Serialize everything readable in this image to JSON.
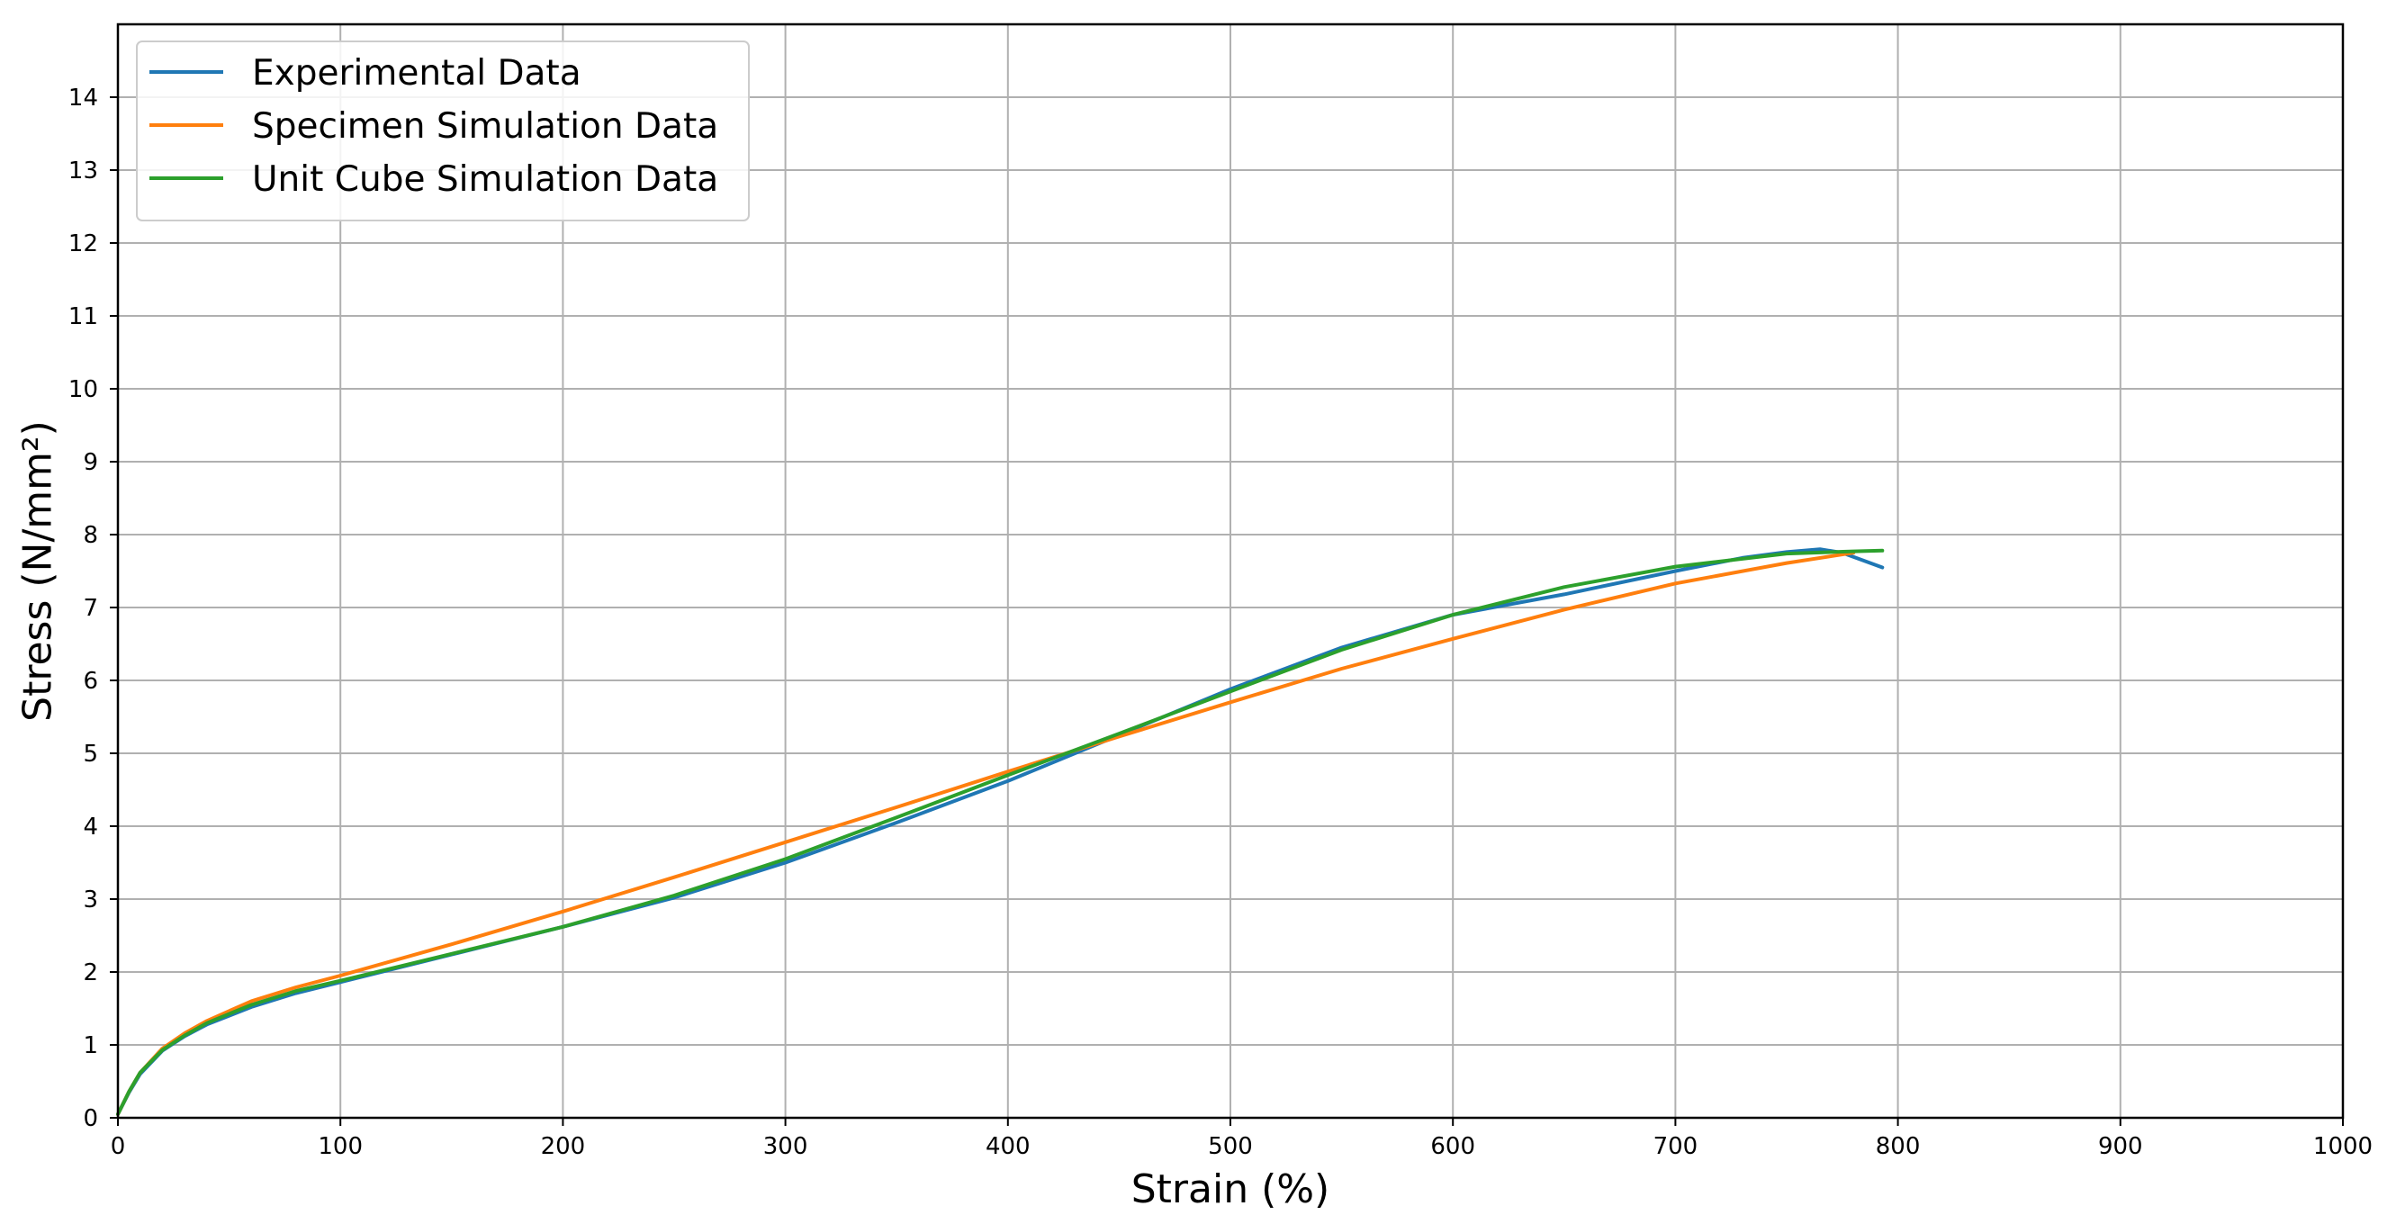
{
  "chart_data": {
    "type": "line",
    "title": "",
    "xlabel": "Strain (%)",
    "ylabel": "Stress (N/mm²)",
    "xlim": [
      0,
      1000
    ],
    "ylim": [
      0,
      15
    ],
    "x_ticks": [
      0,
      100,
      200,
      300,
      400,
      500,
      600,
      700,
      800,
      900,
      1000
    ],
    "y_ticks": [
      0,
      1,
      2,
      3,
      4,
      5,
      6,
      7,
      8,
      9,
      10,
      11,
      12,
      13,
      14
    ],
    "grid": true,
    "legend_position": "top-left",
    "series": [
      {
        "name": "Experimental Data",
        "color": "#1f77b4",
        "x": [
          0,
          5,
          10,
          20,
          30,
          40,
          60,
          80,
          100,
          150,
          200,
          250,
          300,
          350,
          400,
          450,
          500,
          550,
          600,
          650,
          700,
          730,
          750,
          765,
          775,
          785,
          793
        ],
        "y": [
          0.05,
          0.35,
          0.6,
          0.92,
          1.12,
          1.28,
          1.52,
          1.71,
          1.86,
          2.24,
          2.62,
          3.02,
          3.5,
          4.05,
          4.62,
          5.25,
          5.88,
          6.45,
          6.9,
          7.18,
          7.5,
          7.68,
          7.76,
          7.8,
          7.75,
          7.64,
          7.55
        ]
      },
      {
        "name": "Specimen Simulation Data",
        "color": "#ff7f0e",
        "x": [
          0,
          5,
          10,
          20,
          30,
          40,
          60,
          80,
          100,
          150,
          200,
          250,
          300,
          350,
          400,
          450,
          500,
          550,
          600,
          650,
          700,
          750,
          780
        ],
        "y": [
          0.05,
          0.36,
          0.62,
          0.95,
          1.16,
          1.33,
          1.6,
          1.79,
          1.95,
          2.38,
          2.83,
          3.3,
          3.78,
          4.26,
          4.75,
          5.23,
          5.7,
          6.16,
          6.57,
          6.97,
          7.33,
          7.61,
          7.75
        ]
      },
      {
        "name": "Unit Cube Simulation Data",
        "color": "#2ca02c",
        "x": [
          0,
          5,
          10,
          20,
          30,
          40,
          60,
          80,
          100,
          150,
          200,
          250,
          300,
          350,
          400,
          450,
          500,
          550,
          600,
          650,
          700,
          750,
          780,
          793
        ],
        "y": [
          0.05,
          0.36,
          0.62,
          0.93,
          1.13,
          1.3,
          1.55,
          1.74,
          1.88,
          2.25,
          2.62,
          3.05,
          3.55,
          4.12,
          4.7,
          5.27,
          5.85,
          6.42,
          6.9,
          7.28,
          7.56,
          7.74,
          7.77,
          7.78
        ]
      }
    ]
  }
}
